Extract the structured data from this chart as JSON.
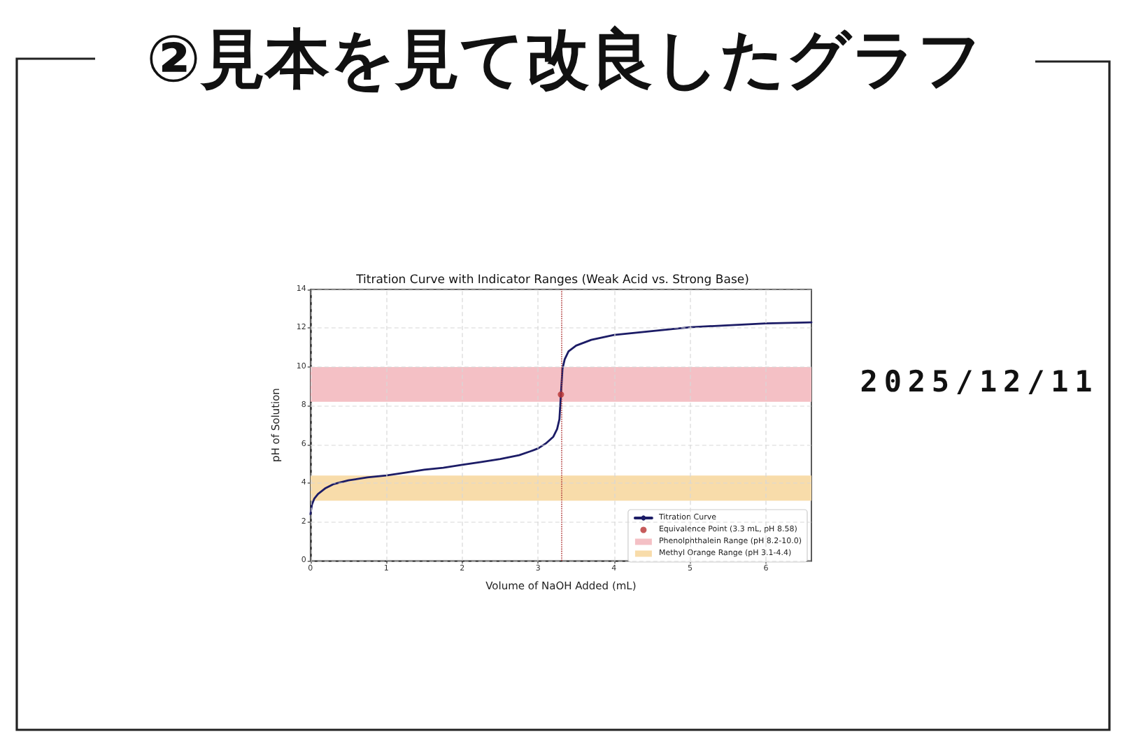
{
  "chart_data": {
    "type": "line",
    "title": "Titration Curve with Indicator Ranges (Weak Acid vs. Strong Base)",
    "xlabel": "Volume of NaOH Added (mL)",
    "ylabel": "pH of Solution",
    "annotations": [
      "②見本を見て改良したグラフ",
      "2025/12/11"
    ],
    "series": [
      {
        "name": "Titration Curve",
        "color": "#1c1c66",
        "x": [
          0,
          0.02,
          0.05,
          0.1,
          0.2,
          0.3,
          0.5,
          0.75,
          1.0,
          1.25,
          1.5,
          1.75,
          2.0,
          2.25,
          2.5,
          2.75,
          2.9,
          3.0,
          3.1,
          3.2,
          3.25,
          3.28,
          3.3,
          3.32,
          3.35,
          3.4,
          3.5,
          3.7,
          4.0,
          4.5,
          5.0,
          5.5,
          6.0,
          6.6
        ],
        "values": [
          2.4,
          2.9,
          3.2,
          3.45,
          3.75,
          3.95,
          4.15,
          4.3,
          4.4,
          4.55,
          4.7,
          4.8,
          4.95,
          5.1,
          5.25,
          5.45,
          5.65,
          5.8,
          6.05,
          6.4,
          6.8,
          7.3,
          8.58,
          9.9,
          10.4,
          10.8,
          11.1,
          11.4,
          11.65,
          11.85,
          12.05,
          12.15,
          12.25,
          12.3
        ]
      },
      {
        "name": "Equivalence Point (3.3 mL, pH 8.58)",
        "type": "scatter",
        "color": "#b83232",
        "x": [
          3.3
        ],
        "values": [
          8.58
        ]
      }
    ],
    "bands": [
      {
        "axis": "y",
        "from": 8.2,
        "to": 10.0,
        "label": "Phenolphthalein Range (pH 8.2-10.0)",
        "color": "#f4c0c5"
      },
      {
        "axis": "y",
        "from": 3.1,
        "to": 4.4,
        "label": "Methyl Orange Range (pH 3.1-4.4)",
        "color": "#f8dcaa"
      }
    ],
    "ref_lines": [
      {
        "axis": "x",
        "value": 3.3,
        "color": "#b03a3a",
        "line_style": "dotted"
      }
    ],
    "xlim": [
      0,
      6.6
    ],
    "xticks": [
      0,
      1,
      2,
      3,
      4,
      5,
      6
    ],
    "ylim": [
      0,
      14
    ],
    "yticks": [
      0,
      2,
      4,
      6,
      8,
      10,
      12,
      14
    ],
    "grid": true,
    "legend": "bottom right"
  }
}
